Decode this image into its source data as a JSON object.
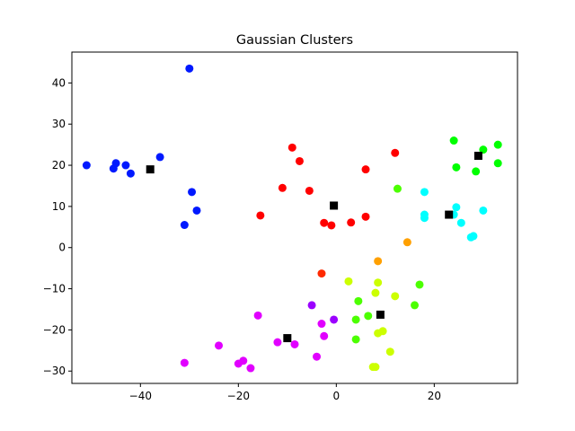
{
  "chart_data": {
    "type": "scatter",
    "title": "Gaussian Clusters",
    "xlabel": "",
    "ylabel": "",
    "xlim": [
      -54,
      37
    ],
    "ylim": [
      -33,
      47.5
    ],
    "xticks": [
      -40,
      -20,
      0,
      20
    ],
    "yticks": [
      -30,
      -20,
      -10,
      0,
      10,
      20,
      30,
      40
    ],
    "grid": false,
    "legend": "none",
    "series": [
      {
        "color": "#0019ff",
        "marker": "circle",
        "points": [
          [
            -51,
            20
          ],
          [
            -45.5,
            19.2
          ],
          [
            -45,
            20.5
          ],
          [
            -43,
            20
          ],
          [
            -42,
            18
          ],
          [
            -36,
            22
          ],
          [
            -30,
            43.5
          ],
          [
            -29.5,
            13.5
          ],
          [
            -28.5,
            9
          ],
          [
            -31,
            5.5
          ]
        ]
      },
      {
        "color": "#ff0000",
        "marker": "circle",
        "points": [
          [
            -9,
            24.3
          ],
          [
            -7.5,
            21
          ],
          [
            -11,
            14.5
          ],
          [
            -5.5,
            13.8
          ],
          [
            -15.5,
            7.8
          ],
          [
            -2.5,
            6
          ],
          [
            -1,
            5.4
          ],
          [
            3,
            6.1
          ],
          [
            6,
            7.5
          ],
          [
            6,
            19
          ],
          [
            12,
            23
          ]
        ]
      },
      {
        "color": "#00ff00",
        "marker": "circle",
        "points": [
          [
            24,
            26
          ],
          [
            24.5,
            19.5
          ],
          [
            28.5,
            18.5
          ],
          [
            30,
            23.8
          ],
          [
            33,
            25
          ],
          [
            33,
            20.5
          ]
        ]
      },
      {
        "color": "#00ffff",
        "marker": "circle",
        "points": [
          [
            18,
            13.5
          ],
          [
            18,
            8
          ],
          [
            18,
            7.2
          ],
          [
            24.5,
            9.8
          ],
          [
            24,
            8
          ],
          [
            25.5,
            6
          ],
          [
            27.5,
            2.5
          ],
          [
            28,
            2.8
          ],
          [
            30,
            9
          ]
        ]
      },
      {
        "color": "#4cff00",
        "marker": "circle",
        "points": [
          [
            12.5,
            14.3
          ],
          [
            4.5,
            -13
          ],
          [
            4,
            -17.5
          ],
          [
            4,
            -22.3
          ],
          [
            6.5,
            -16.6
          ],
          [
            16,
            -14
          ],
          [
            17,
            -9
          ]
        ]
      },
      {
        "color": "#ccff00",
        "marker": "circle",
        "points": [
          [
            2.5,
            -8.2
          ],
          [
            8,
            -11
          ],
          [
            8.5,
            -8.5
          ],
          [
            12,
            -11.8
          ],
          [
            8.5,
            -20.8
          ],
          [
            9.5,
            -20.3
          ],
          [
            11,
            -25.3
          ],
          [
            7.5,
            -29
          ],
          [
            8,
            -29
          ]
        ]
      },
      {
        "color": "#ffa000",
        "marker": "circle",
        "points": [
          [
            8.5,
            -3.3
          ],
          [
            14.5,
            1.3
          ]
        ]
      },
      {
        "color": "#ff2a00",
        "marker": "circle",
        "points": [
          [
            -3,
            -6.3
          ]
        ]
      },
      {
        "color": "#9b00ff",
        "marker": "circle",
        "points": [
          [
            -5,
            -14
          ],
          [
            -0.5,
            -17.5
          ]
        ]
      },
      {
        "color": "#e100ff",
        "marker": "circle",
        "points": [
          [
            -16,
            -16.5
          ],
          [
            -3,
            -18.5
          ],
          [
            -2.5,
            -21.5
          ],
          [
            -12,
            -23
          ],
          [
            -8.5,
            -23.5
          ],
          [
            -24,
            -23.8
          ],
          [
            -4,
            -26.5
          ],
          [
            -31,
            -28
          ],
          [
            -20,
            -28.2
          ],
          [
            -19,
            -27.5
          ],
          [
            -17.5,
            -29.3
          ]
        ]
      },
      {
        "color": "#000000",
        "marker": "square",
        "points": [
          [
            -38,
            19
          ],
          [
            -0.5,
            10.2
          ],
          [
            29,
            22.3
          ],
          [
            23,
            8
          ],
          [
            9,
            -16.3
          ],
          [
            -10,
            -22
          ]
        ]
      }
    ]
  }
}
